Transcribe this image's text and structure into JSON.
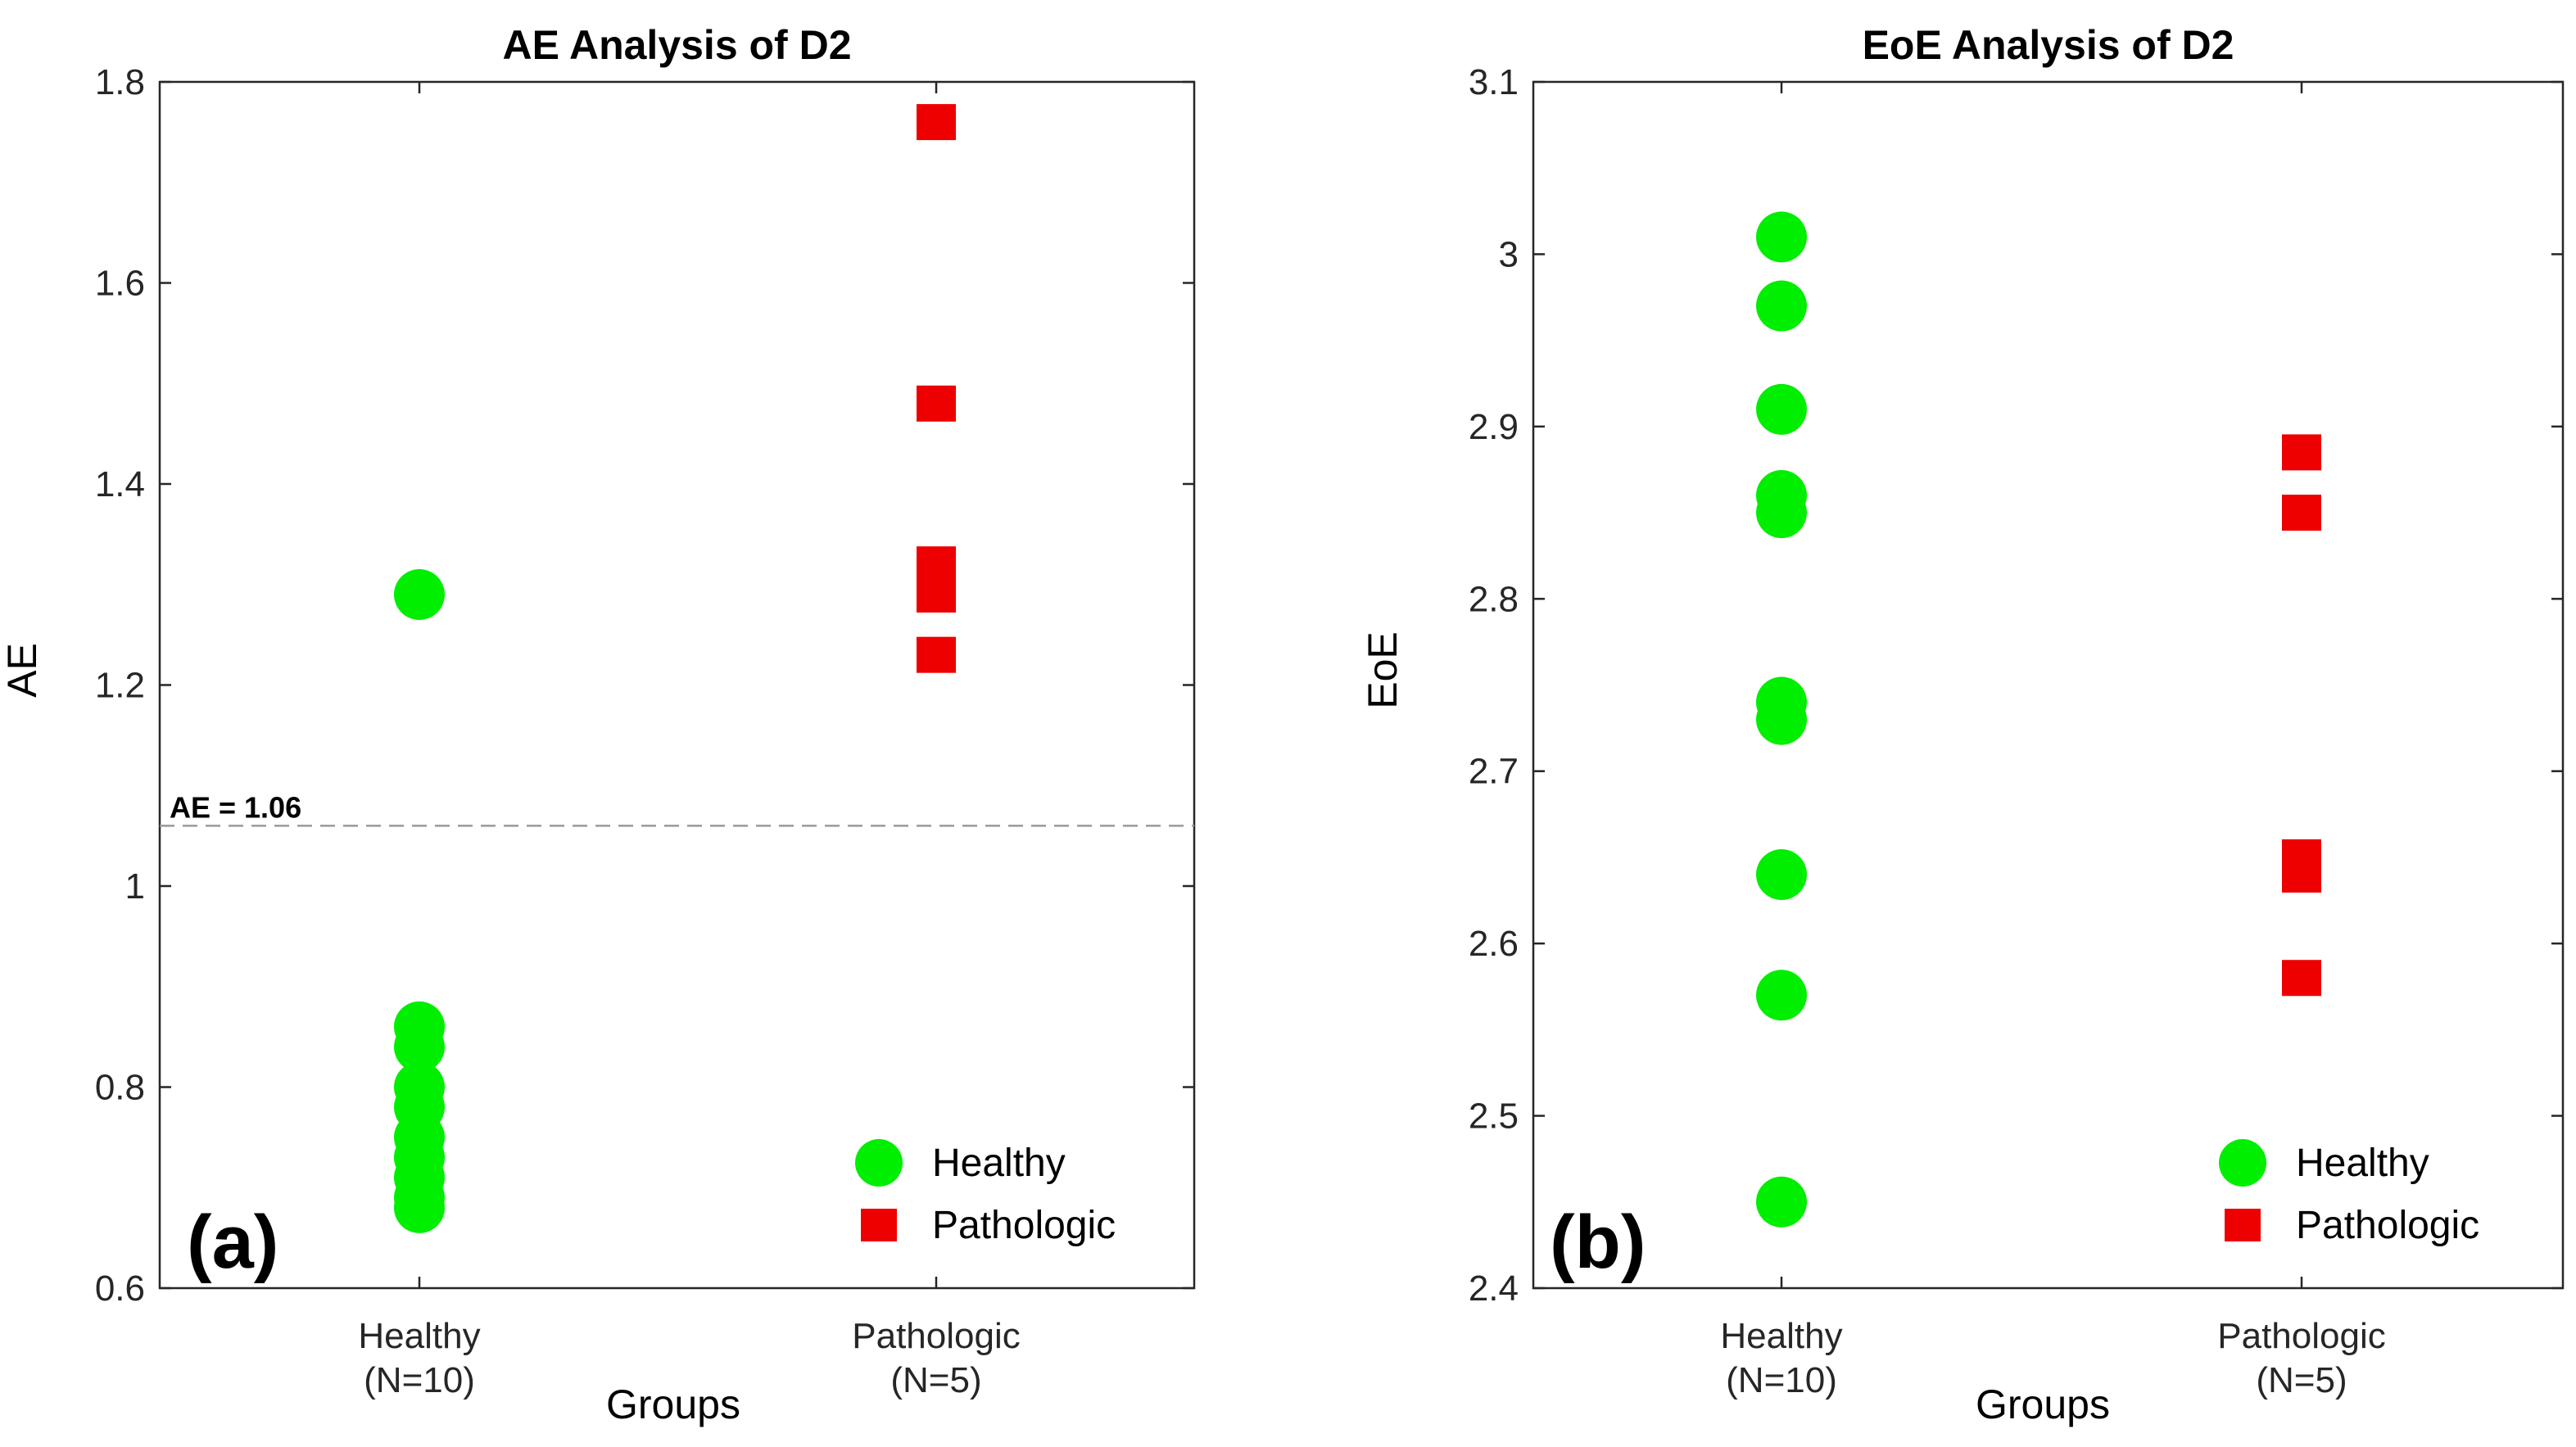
{
  "chart_data": [
    {
      "type": "scatter",
      "title": "AE Analysis of D2",
      "panel_label": "(a)",
      "xlabel": "Groups",
      "ylabel": "AE",
      "categories": [
        [
          "Healthy",
          "(N=10)"
        ],
        [
          "Pathologic",
          "(N=5)"
        ]
      ],
      "ylim": [
        0.6,
        1.8
      ],
      "yticks": [
        0.6,
        0.8,
        1,
        1.2,
        1.4,
        1.6,
        1.8
      ],
      "ytick_labels": [
        "0.6",
        "0.8",
        "1",
        "1.2",
        "1.4",
        "1.6",
        "1.8"
      ],
      "threshold": {
        "value": 1.06,
        "label": "AE = 1.06"
      },
      "series": [
        {
          "name": "Healthy",
          "marker": "circle",
          "color": "#00ee00",
          "category": 0,
          "values": [
            1.29,
            0.86,
            0.84,
            0.8,
            0.78,
            0.75,
            0.73,
            0.71,
            0.69,
            0.68
          ]
        },
        {
          "name": "Pathologic",
          "marker": "square",
          "color": "#ee0000",
          "category": 1,
          "values": [
            1.76,
            1.48,
            1.32,
            1.29,
            1.23
          ]
        }
      ],
      "legend": {
        "position": "bottom-right",
        "entries": [
          "Healthy",
          "Pathologic"
        ]
      },
      "grid": false
    },
    {
      "type": "scatter",
      "title": "EoE Analysis of D2",
      "panel_label": "(b)",
      "xlabel": "Groups",
      "ylabel": "EoE",
      "categories": [
        [
          "Healthy",
          "(N=10)"
        ],
        [
          "Pathologic",
          "(N=5)"
        ]
      ],
      "ylim": [
        2.4,
        3.1
      ],
      "yticks": [
        2.4,
        2.5,
        2.6,
        2.7,
        2.8,
        2.9,
        3.0,
        3.1
      ],
      "ytick_labels": [
        "2.4",
        "2.5",
        "2.6",
        "2.7",
        "2.8",
        "2.9",
        "3",
        "3.1"
      ],
      "series": [
        {
          "name": "Healthy",
          "marker": "circle",
          "color": "#00ee00",
          "category": 0,
          "values": [
            3.01,
            2.97,
            2.91,
            2.86,
            2.85,
            2.74,
            2.73,
            2.64,
            2.57,
            2.45
          ]
        },
        {
          "name": "Pathologic",
          "marker": "square",
          "color": "#ee0000",
          "category": 1,
          "values": [
            2.885,
            2.85,
            2.65,
            2.64,
            2.58
          ]
        }
      ],
      "legend": {
        "position": "bottom-right",
        "entries": [
          "Healthy",
          "Pathologic"
        ]
      },
      "grid": false
    }
  ]
}
